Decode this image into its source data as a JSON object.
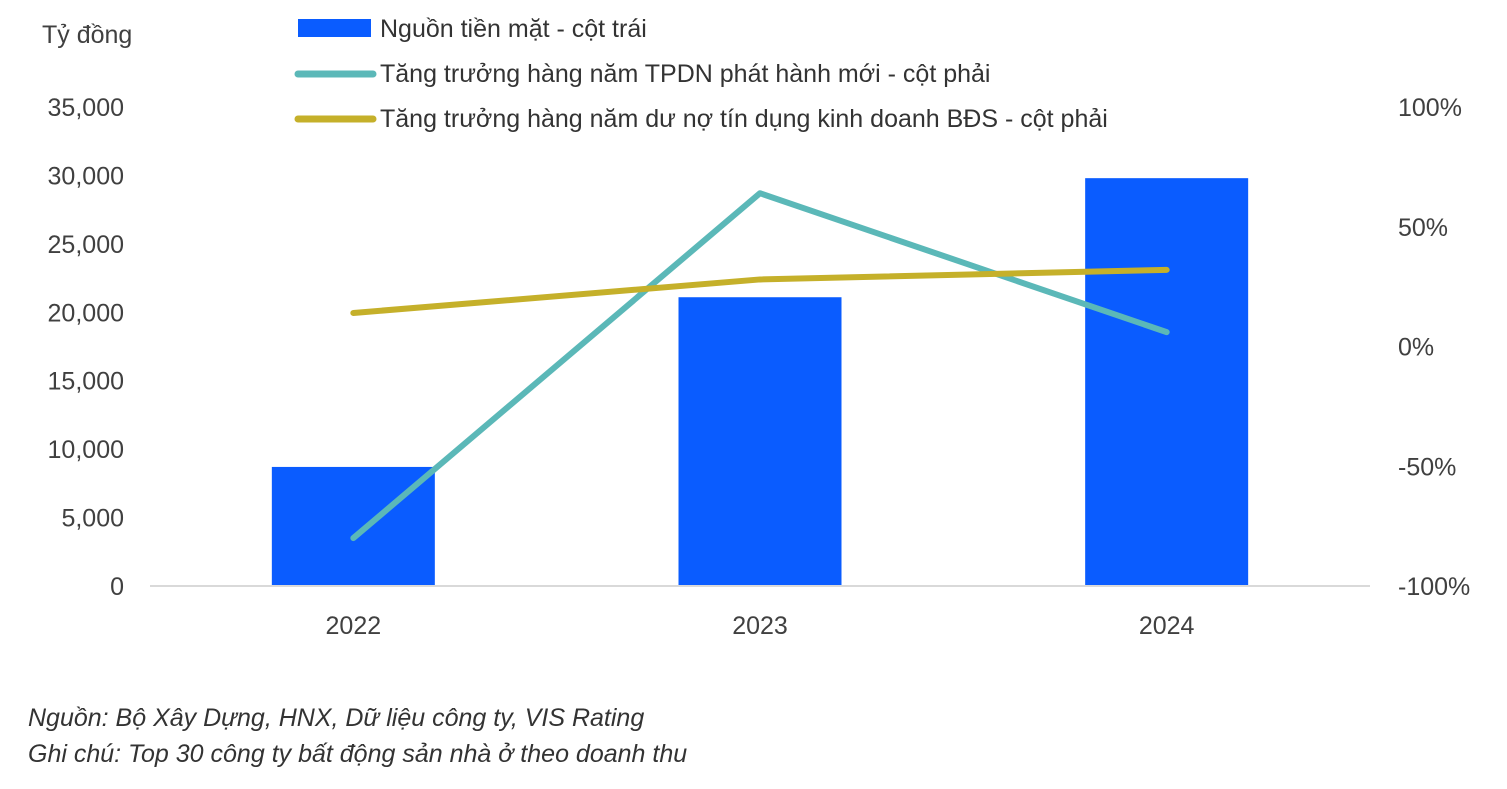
{
  "chart_data": {
    "type": "bar+line",
    "left_axis_unit_label": "Tỷ đồng",
    "categories": [
      "2022",
      "2023",
      "2024"
    ],
    "left_axis": {
      "ylim": [
        0,
        35000
      ],
      "ticks": [
        0,
        5000,
        10000,
        15000,
        20000,
        25000,
        30000,
        35000
      ],
      "tick_labels": [
        "0",
        "5,000",
        "10,000",
        "15,000",
        "20,000",
        "25,000",
        "30,000",
        "35,000"
      ]
    },
    "right_axis": {
      "ylim": [
        -100,
        100
      ],
      "ticks": [
        -100,
        -50,
        0,
        50,
        100
      ],
      "tick_labels": [
        "-100%",
        "-50%",
        "0%",
        "50%",
        "100%"
      ]
    },
    "series": [
      {
        "name": "Nguồn tiền mặt - cột trái",
        "type": "bar",
        "axis": "left",
        "values": [
          8700,
          21100,
          29800
        ],
        "color": "#0a5cff"
      },
      {
        "name": "Tăng trưởng hàng năm TPDN phát hành mới - cột phải",
        "type": "line",
        "axis": "right",
        "values": [
          -80,
          64,
          6
        ],
        "color": "#5bb8b8"
      },
      {
        "name": "Tăng trưởng hàng năm dư nợ tín dụng kinh doanh BĐS - cột phải",
        "type": "line",
        "axis": "right",
        "values": [
          14,
          28,
          32
        ],
        "color": "#c5b02a"
      }
    ],
    "legend_position": "top",
    "grid": false
  },
  "footnotes": {
    "source": "Nguồn: Bộ Xây Dựng, HNX, Dữ liệu công ty, VIS Rating",
    "note": "Ghi chú: Top 30 công ty bất động sản nhà ở theo doanh thu"
  }
}
